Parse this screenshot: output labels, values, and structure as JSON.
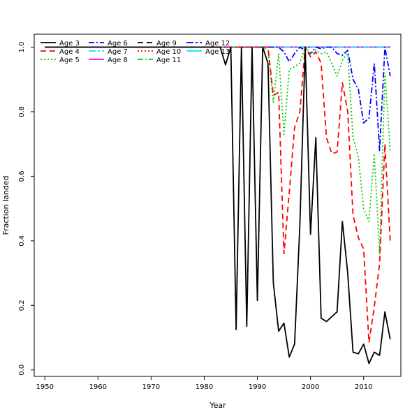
{
  "chart_data": {
    "type": "line",
    "title": "",
    "xlabel": "Year",
    "ylabel": "Fraction landed",
    "xlim": [
      1948,
      2017
    ],
    "ylim": [
      -0.02,
      1.04
    ],
    "xticks": [
      1950,
      1960,
      1970,
      1980,
      1990,
      2000,
      2010
    ],
    "yticks": [
      0.0,
      0.2,
      0.4,
      0.6,
      0.8,
      1.0
    ],
    "ytick_labels": [
      "0.0",
      "0.2",
      "0.4",
      "0.6",
      "0.8",
      "1.0"
    ],
    "grid": false,
    "legend": "top-left",
    "x": [
      1950,
      1951,
      1952,
      1953,
      1954,
      1955,
      1956,
      1957,
      1958,
      1959,
      1960,
      1961,
      1962,
      1963,
      1964,
      1965,
      1966,
      1967,
      1968,
      1969,
      1970,
      1971,
      1972,
      1973,
      1974,
      1975,
      1976,
      1977,
      1978,
      1979,
      1980,
      1981,
      1982,
      1983,
      1984,
      1985,
      1986,
      1987,
      1988,
      1989,
      1990,
      1991,
      1992,
      1993,
      1994,
      1995,
      1996,
      1997,
      1998,
      1999,
      2000,
      2001,
      2002,
      2003,
      2004,
      2005,
      2006,
      2007,
      2008,
      2009,
      2010,
      2011,
      2012,
      2013,
      2014,
      2015
    ],
    "series": [
      {
        "name": "Age 3",
        "color": "#000000",
        "dash": "",
        "values": [
          1,
          1,
          1,
          1,
          1,
          1,
          1,
          1,
          1,
          1,
          1,
          1,
          1,
          1,
          1,
          1,
          1,
          1,
          1,
          1,
          1,
          1,
          1,
          1,
          1,
          1,
          1,
          1,
          1,
          1,
          1,
          1,
          1,
          1,
          0.945,
          1,
          0.125,
          1,
          0.135,
          1,
          0.215,
          1,
          0.95,
          0.27,
          0.12,
          0.145,
          0.04,
          0.08,
          0.45,
          1,
          0.42,
          0.72,
          0.16,
          0.15,
          0.165,
          0.18,
          0.46,
          0.3,
          0.055,
          0.05,
          0.08,
          0.02,
          0.055,
          0.045,
          0.18,
          0.095
        ]
      },
      {
        "name": "Age 4",
        "color": "#ff0000",
        "dash": "8 5",
        "values": [
          1,
          1,
          1,
          1,
          1,
          1,
          1,
          1,
          1,
          1,
          1,
          1,
          1,
          1,
          1,
          1,
          1,
          1,
          1,
          1,
          1,
          1,
          1,
          1,
          1,
          1,
          1,
          1,
          1,
          1,
          1,
          1,
          1,
          1,
          1,
          1,
          1,
          1,
          1,
          1,
          1,
          1,
          1,
          0.85,
          0.86,
          0.36,
          0.55,
          0.75,
          0.8,
          1,
          0.97,
          0.985,
          0.95,
          0.72,
          0.67,
          0.675,
          0.89,
          0.8,
          0.48,
          0.41,
          0.375,
          0.085,
          0.195,
          0.33,
          0.7,
          0.4
        ]
      },
      {
        "name": "Age 5",
        "color": "#00cc00",
        "dash": "2 3",
        "values": [
          1,
          1,
          1,
          1,
          1,
          1,
          1,
          1,
          1,
          1,
          1,
          1,
          1,
          1,
          1,
          1,
          1,
          1,
          1,
          1,
          1,
          1,
          1,
          1,
          1,
          1,
          1,
          1,
          1,
          1,
          1,
          1,
          1,
          1,
          1,
          1,
          1,
          1,
          1,
          1,
          1,
          1,
          0.99,
          0.83,
          0.98,
          0.73,
          0.93,
          0.94,
          0.95,
          1,
          0.98,
          0.99,
          0.98,
          0.985,
          0.95,
          0.91,
          0.96,
          0.98,
          0.72,
          0.66,
          0.5,
          0.46,
          0.67,
          0.36,
          0.92,
          0.68
        ]
      },
      {
        "name": "Age 6",
        "color": "#0000ff",
        "dash": "8 3 2 3",
        "values": [
          1,
          1,
          1,
          1,
          1,
          1,
          1,
          1,
          1,
          1,
          1,
          1,
          1,
          1,
          1,
          1,
          1,
          1,
          1,
          1,
          1,
          1,
          1,
          1,
          1,
          1,
          1,
          1,
          1,
          1,
          1,
          1,
          1,
          1,
          1,
          1,
          1,
          1,
          1,
          1,
          1,
          1,
          1,
          1,
          1,
          0.985,
          0.955,
          0.98,
          1,
          0.99,
          0.98,
          1,
          0.995,
          1,
          1,
          0.98,
          0.975,
          0.99,
          0.9,
          0.87,
          0.765,
          0.78,
          0.95,
          0.68,
          1,
          0.91
        ]
      },
      {
        "name": "Age 7",
        "color": "#00e5ff",
        "dash": "10 3 3 3",
        "values": [
          1,
          1,
          1,
          1,
          1,
          1,
          1,
          1,
          1,
          1,
          1,
          1,
          1,
          1,
          1,
          1,
          1,
          1,
          1,
          1,
          1,
          1,
          1,
          1,
          1,
          1,
          1,
          1,
          1,
          1,
          1,
          1,
          1,
          1,
          1,
          1,
          1,
          1,
          1,
          1,
          1,
          1,
          1,
          1,
          1,
          1,
          1,
          1,
          1,
          1,
          1,
          1,
          1,
          1,
          1,
          1,
          1,
          1,
          1,
          1,
          1,
          1,
          1,
          1,
          1,
          1
        ]
      },
      {
        "name": "Age 8",
        "color": "#ff00ff",
        "dash": "",
        "values": [
          1,
          1,
          1,
          1,
          1,
          1,
          1,
          1,
          1,
          1,
          1,
          1,
          1,
          1,
          1,
          1,
          1,
          1,
          1,
          1,
          1,
          1,
          1,
          1,
          1,
          1,
          1,
          1,
          1,
          1,
          1,
          1,
          1,
          1,
          1,
          1,
          1,
          1,
          1,
          1,
          1,
          1,
          1,
          1,
          1,
          1,
          1,
          1,
          1,
          1,
          1,
          1,
          1,
          1,
          1,
          1,
          1,
          1,
          1,
          1,
          1,
          1,
          1,
          1,
          1,
          1
        ]
      },
      {
        "name": "Age 9",
        "color": "#000000",
        "dash": "8 5",
        "values": [
          1,
          1,
          1,
          1,
          1,
          1,
          1,
          1,
          1,
          1,
          1,
          1,
          1,
          1,
          1,
          1,
          1,
          1,
          1,
          1,
          1,
          1,
          1,
          1,
          1,
          1,
          1,
          1,
          1,
          1,
          1,
          1,
          1,
          1,
          1,
          1,
          1,
          1,
          1,
          1,
          1,
          1,
          1,
          1,
          1,
          1,
          1,
          1,
          1,
          1,
          1,
          1,
          1,
          1,
          1,
          1,
          1,
          1,
          1,
          1,
          1,
          1,
          1,
          1,
          1,
          1
        ]
      },
      {
        "name": "Age 10",
        "color": "#ff0000",
        "dash": "2 3",
        "values": [
          1,
          1,
          1,
          1,
          1,
          1,
          1,
          1,
          1,
          1,
          1,
          1,
          1,
          1,
          1,
          1,
          1,
          1,
          1,
          1,
          1,
          1,
          1,
          1,
          1,
          1,
          1,
          1,
          1,
          1,
          1,
          1,
          1,
          1,
          1,
          1,
          1,
          1,
          1,
          1,
          1,
          1,
          1,
          1,
          1,
          1,
          1,
          1,
          1,
          1,
          1,
          1,
          1,
          1,
          1,
          1,
          1,
          1,
          1,
          1,
          1,
          1,
          1,
          1,
          1,
          1
        ]
      },
      {
        "name": "Age 11",
        "color": "#00cc00",
        "dash": "8 3 2 3",
        "values": [
          1,
          1,
          1,
          1,
          1,
          1,
          1,
          1,
          1,
          1,
          1,
          1,
          1,
          1,
          1,
          1,
          1,
          1,
          1,
          1,
          1,
          1,
          1,
          1,
          1,
          1,
          1,
          1,
          1,
          1,
          1,
          1,
          1,
          1,
          1,
          1,
          1,
          1,
          1,
          1,
          1,
          1,
          1,
          1,
          1,
          1,
          1,
          1,
          1,
          1,
          1,
          1,
          1,
          1,
          1,
          1,
          1,
          1,
          1,
          1,
          1,
          1,
          1,
          1,
          1,
          1
        ]
      },
      {
        "name": "Age 12",
        "color": "#0000ff",
        "dash": "10 3 3 3",
        "values": [
          1,
          1,
          1,
          1,
          1,
          1,
          1,
          1,
          1,
          1,
          1,
          1,
          1,
          1,
          1,
          1,
          1,
          1,
          1,
          1,
          1,
          1,
          1,
          1,
          1,
          1,
          1,
          1,
          1,
          1,
          1,
          1,
          1,
          1,
          1,
          1,
          1,
          1,
          1,
          1,
          1,
          1,
          1,
          1,
          1,
          1,
          1,
          1,
          1,
          1,
          1,
          1,
          1,
          1,
          1,
          1,
          1,
          1,
          1,
          1,
          1,
          1,
          1,
          1,
          1,
          1
        ]
      },
      {
        "name": "Age 13",
        "color": "#00e5ff",
        "dash": "",
        "values": [
          1,
          1,
          1,
          1,
          1,
          1,
          1,
          1,
          1,
          1,
          1,
          1,
          1,
          1,
          1,
          1,
          1,
          1,
          1,
          1,
          1,
          1,
          1,
          1,
          1,
          1,
          1,
          1,
          1,
          1,
          1,
          1,
          1,
          1,
          1,
          1,
          1,
          1,
          1,
          1,
          1,
          1,
          1,
          1,
          1,
          1,
          1,
          1,
          1,
          1,
          1,
          1,
          1,
          1,
          1,
          1,
          1,
          1,
          1,
          1,
          1,
          1,
          1,
          1,
          1,
          1
        ]
      }
    ]
  }
}
